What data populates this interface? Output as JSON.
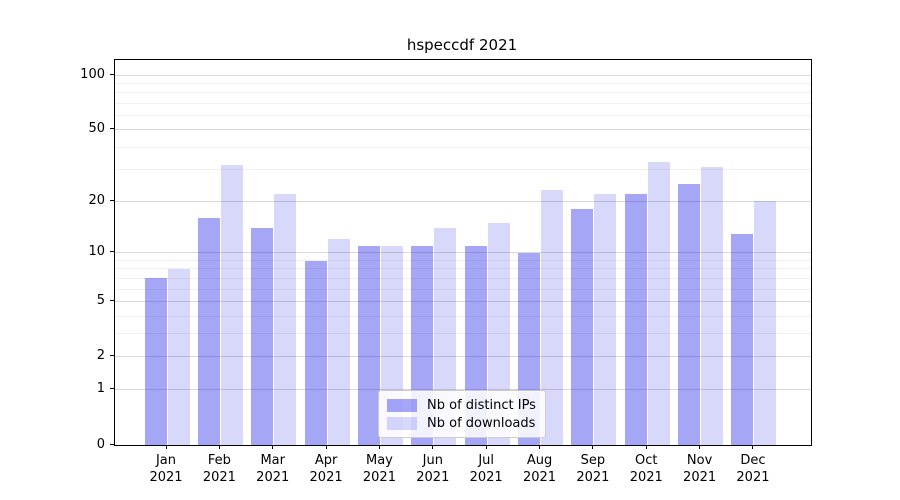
{
  "title": "hspeccdf 2021",
  "chart_data": {
    "type": "bar",
    "title": "hspeccdf 2021",
    "categories": [
      "Jan",
      "Feb",
      "Mar",
      "Apr",
      "May",
      "Jun",
      "Jul",
      "Aug",
      "Sep",
      "Oct",
      "Nov",
      "Dec"
    ],
    "year_label": "2021",
    "series": [
      {
        "name": "Nb of distinct IPs",
        "color": "rgba(13,13,232,0.37)",
        "values": [
          7,
          16,
          14,
          9,
          11,
          11,
          11,
          10,
          18,
          22,
          25,
          13
        ]
      },
      {
        "name": "Nb of downloads",
        "color": "rgba(13,13,232,0.16)",
        "values": [
          8,
          32,
          22,
          12,
          11,
          14,
          15,
          23,
          22,
          33,
          31,
          20
        ]
      }
    ],
    "y_scale": "log10(1+v)",
    "ylim": [
      0,
      120
    ],
    "y_major_ticks": [
      0,
      1,
      2,
      5,
      10,
      20,
      50,
      100
    ],
    "y_tick_labels": [
      "0",
      "1",
      "2",
      "5",
      "10",
      "20",
      "50",
      "100"
    ],
    "y_minor_ticks": [
      3,
      4,
      6,
      7,
      8,
      9,
      30,
      40,
      60,
      70,
      80,
      90
    ],
    "grid": true,
    "legend_position": "lower center",
    "xlabel": "",
    "ylabel": ""
  },
  "legend": {
    "item1": "Nb of distinct IPs",
    "item2": "Nb of downloads"
  },
  "colors": {
    "bar_distinct_ips": "rgba(13,13,232,0.37)",
    "bar_downloads": "rgba(13,13,232,0.16)",
    "grid_major": "#d9d9d9",
    "grid_minor": "#f0f0f0",
    "axis": "#000000",
    "legend_border": "#cccccc"
  }
}
